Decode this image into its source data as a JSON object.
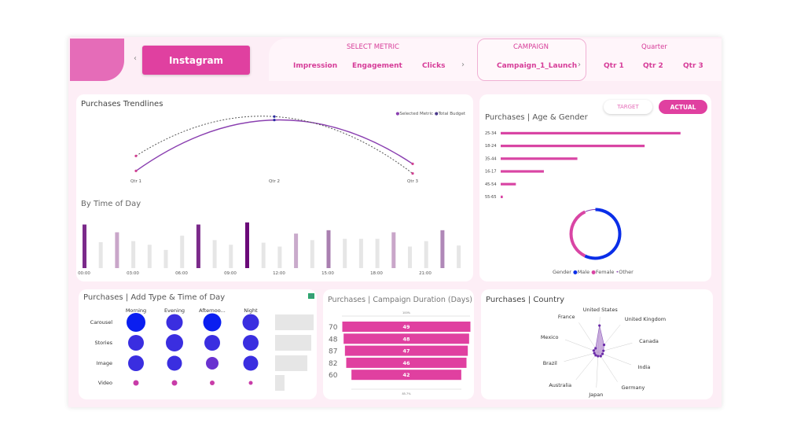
{
  "header": {
    "platform": "Instagram",
    "metric_title": "SELECT METRIC",
    "metrics": [
      "Impression",
      "Engagement",
      "Clicks"
    ],
    "campaign_title": "CAMPAIGN",
    "campaign": "Campaign_1_Launch",
    "quarter_title": "Quarter",
    "quarters": [
      "Qtr 1",
      "Qtr 2",
      "Qtr 3"
    ]
  },
  "colors": {
    "accent": "#e040a0",
    "purple": "#7b2fbe",
    "male": "#0a2ee8",
    "female": "#d945a4",
    "other": "#8a3fb0"
  },
  "trend": {
    "title": "Purchases Trendlines",
    "legend": [
      "Selected Metric",
      "Total Budget"
    ],
    "chart_data": {
      "type": "line",
      "categories": [
        "Qtr 1",
        "Qtr 2",
        "Qtr 3"
      ],
      "series": [
        {
          "name": "Selected Metric",
          "values": [
            35,
            215,
            60
          ]
        },
        {
          "name": "Total Budget",
          "values": [
            88,
            227,
            26
          ]
        }
      ]
    }
  },
  "tod": {
    "title": "By Time of Day",
    "ticks": [
      "00:00",
      "03:00",
      "06:00",
      "09:00",
      "12:00",
      "15:00",
      "18:00",
      "21:00"
    ],
    "chart_data": {
      "type": "bar",
      "categories": [
        "0",
        "1",
        "2",
        "3",
        "4",
        "5",
        "6",
        "7",
        "8",
        "9",
        "10",
        "11",
        "12",
        "13",
        "14",
        "15",
        "16",
        "17",
        "18",
        "19",
        "20",
        "21",
        "22",
        "23"
      ],
      "values": [
        168,
        100,
        138,
        104,
        90,
        70,
        125,
        168,
        108,
        90,
        176,
        98,
        83,
        133,
        108,
        146,
        113,
        113,
        113,
        138,
        83,
        104,
        146,
        87
      ],
      "colors": [
        "#7b2a8a",
        "#e6e6e6",
        "#c9a6c9",
        "#e6e6e6",
        "#e6e6e6",
        "#e6e6e6",
        "#e6e6e6",
        "#7b2a8a",
        "#e6e6e6",
        "#e6e6e6",
        "#6a0a78",
        "#e6e6e6",
        "#e6e6e6",
        "#c9aacb",
        "#e6e6e6",
        "#a97fb0",
        "#e6e6e6",
        "#e6e6e6",
        "#e6e6e6",
        "#c9a6c9",
        "#e6e6e6",
        "#e6e6e6",
        "#b088b8",
        "#e6e6e6"
      ]
    }
  },
  "age": {
    "title": "Purchases | Age & Gender",
    "target_label": "TARGET",
    "actual_label": "ACTUAL",
    "chart_data": {
      "type": "bar",
      "categories": [
        "25-34",
        "18-24",
        "35-44",
        "16-17",
        "45-54",
        "55-65"
      ],
      "values": [
        687,
        550,
        293,
        165,
        58,
        8
      ]
    },
    "gender_label": "Gender",
    "gender": [
      {
        "name": "Male",
        "value": 57
      },
      {
        "name": "Female",
        "value": 36
      },
      {
        "name": "Other",
        "value": 7
      }
    ]
  },
  "bubble": {
    "title": "Purchases | Add Type & Time of Day",
    "columns": [
      "Morning",
      "Evening",
      "Afternoo...",
      "Night"
    ],
    "rows": [
      "Carousel",
      "Stories",
      "Image",
      "Video"
    ],
    "chart_data": {
      "type": "scatter",
      "sizes": [
        [
          12,
          10.5,
          11.5,
          10.5
        ],
        [
          10,
          11,
          10,
          10
        ],
        [
          10,
          9.5,
          8,
          9.5
        ],
        [
          3.5,
          3.5,
          3,
          2.5
        ]
      ],
      "totals": [
        49,
        46,
        41,
        12
      ]
    }
  },
  "funnel": {
    "title": "Purchases | Campaign Duration (Days)",
    "top_label": "100%",
    "bottom_label": "85.7%",
    "chart_data": {
      "type": "bar",
      "categories": [
        "70",
        "48",
        "87",
        "82",
        "60"
      ],
      "values": [
        49,
        48,
        47,
        46,
        42
      ]
    }
  },
  "country": {
    "title": "Purchases | Country",
    "chart_data": {
      "type": "radar",
      "categories": [
        "United States",
        "United Kingdom",
        "Canada",
        "India",
        "Germany",
        "Japan",
        "Australia",
        "Brazil",
        "Mexico",
        "France"
      ],
      "values": [
        34,
        12,
        7,
        6,
        6,
        5,
        5,
        5,
        6,
        6
      ]
    }
  }
}
